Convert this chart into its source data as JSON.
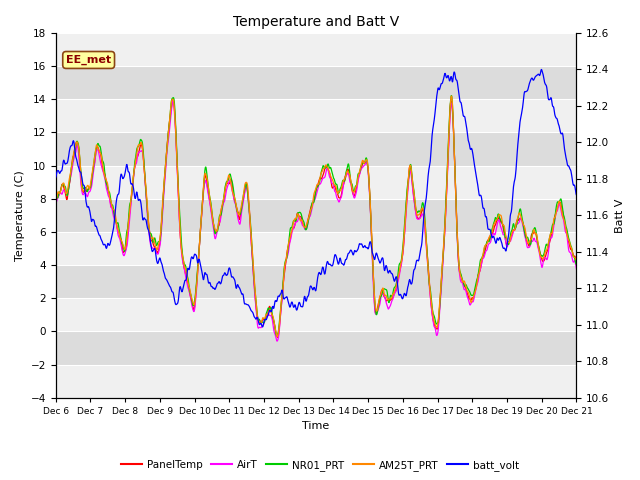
{
  "title": "Temperature and Batt V",
  "xlabel": "Time",
  "ylabel_left": "Temperature (C)",
  "ylabel_right": "Batt V",
  "annotation": "EE_met",
  "ylim_left": [
    -4,
    18
  ],
  "ylim_right": [
    10.6,
    12.6
  ],
  "x_labels": [
    "Dec 6",
    "Dec 7",
    "Dec 8",
    "Dec 9",
    "Dec 10",
    "Dec 11",
    "Dec 12",
    "Dec 13",
    "Dec 14",
    "Dec 15",
    "Dec 16",
    "Dec 17",
    "Dec 18",
    "Dec 19",
    "Dec 20",
    "Dec 21"
  ],
  "background_color": "#ffffff",
  "plot_bg_light": "#f0f0f0",
  "plot_bg_dark": "#dcdcdc",
  "grid_color": "#ffffff",
  "series_colors": {
    "PanelTemp": "#ff0000",
    "AirT": "#ff00ff",
    "NR01_PRT": "#00cc00",
    "AM25T_PRT": "#ff8800",
    "batt_volt": "#0000ff"
  },
  "legend_entries": [
    "PanelTemp",
    "AirT",
    "NR01_PRT",
    "AM25T_PRT",
    "batt_volt"
  ],
  "yticks_left": [
    -4,
    -2,
    0,
    2,
    4,
    6,
    8,
    10,
    12,
    14,
    16,
    18
  ],
  "yticks_right": [
    10.6,
    10.8,
    11.0,
    11.2,
    11.4,
    11.6,
    11.8,
    12.0,
    12.2,
    12.4,
    12.6
  ]
}
